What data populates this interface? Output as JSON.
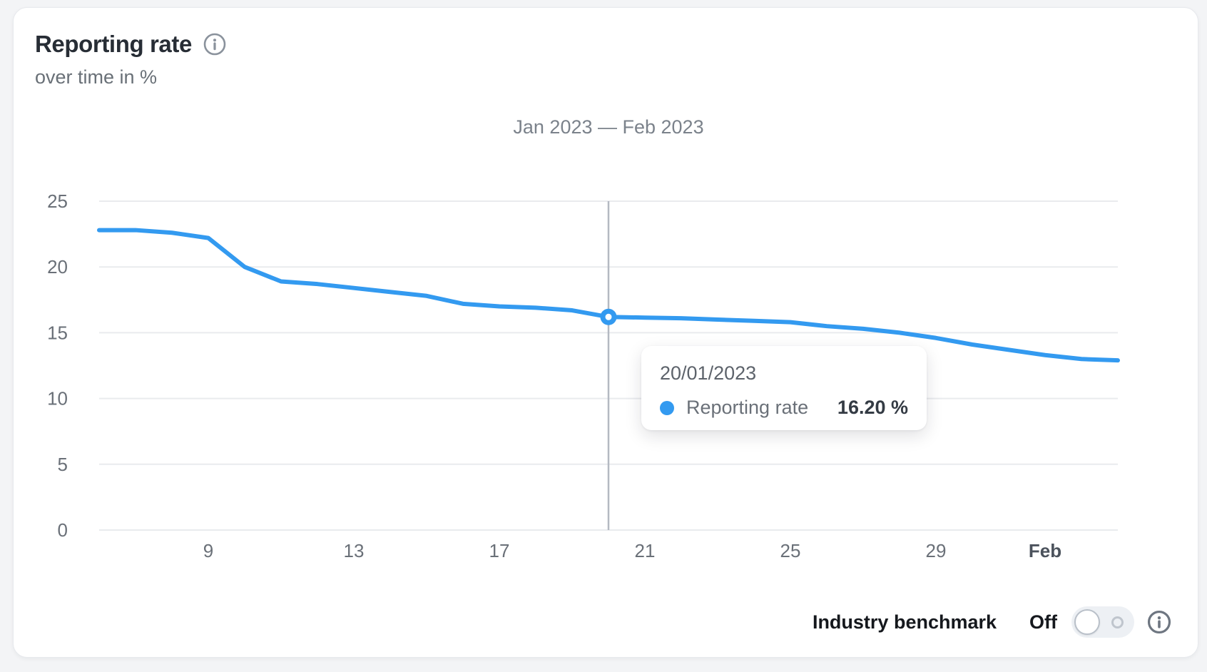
{
  "header": {
    "title": "Reporting rate",
    "subtitle": "over time in %"
  },
  "chart_data": {
    "type": "line",
    "title": "Jan 2023 — Feb 2023",
    "x_unit": "day index within Jan 2023 (32 = Feb 1)",
    "xlim": [
      6,
      34
    ],
    "ylim": [
      0,
      25
    ],
    "grid": "horizontal",
    "y_ticks": [
      0,
      5,
      10,
      15,
      20,
      25
    ],
    "x_ticks": [
      {
        "label": "9",
        "day": 9,
        "bold": false
      },
      {
        "label": "13",
        "day": 13,
        "bold": false
      },
      {
        "label": "17",
        "day": 17,
        "bold": false
      },
      {
        "label": "21",
        "day": 21,
        "bold": false
      },
      {
        "label": "25",
        "day": 25,
        "bold": false
      },
      {
        "label": "29",
        "day": 29,
        "bold": false
      },
      {
        "label": "Feb",
        "day": 32,
        "bold": true
      }
    ],
    "series": [
      {
        "name": "Reporting rate",
        "color": "#339af0",
        "days": [
          6,
          7,
          8,
          9,
          10,
          11,
          12,
          13,
          14,
          15,
          16,
          17,
          18,
          19,
          20,
          21,
          22,
          23,
          24,
          25,
          26,
          27,
          28,
          29,
          30,
          31,
          32,
          33,
          34
        ],
        "values": [
          22.8,
          22.8,
          22.6,
          22.2,
          20.0,
          18.9,
          18.7,
          18.4,
          18.1,
          17.8,
          17.2,
          17.0,
          16.9,
          16.7,
          16.2,
          16.15,
          16.1,
          16.0,
          15.9,
          15.8,
          15.5,
          15.3,
          15.0,
          14.6,
          14.1,
          13.7,
          13.3,
          13.0,
          12.9
        ]
      }
    ]
  },
  "tooltip": {
    "date": "20/01/2023",
    "series_label": "Reporting rate",
    "value": "16.20 %",
    "highlight_day": 20,
    "highlight_value": 16.2
  },
  "benchmark": {
    "label": "Industry benchmark",
    "state": "Off",
    "toggle_state": "off"
  },
  "colors": {
    "accent_blue": "#339af0",
    "hover_line": "#b4b9c2",
    "grid_line": "#e9ebee",
    "card_bg": "#ffffff",
    "page_bg": "#f3f4f6",
    "title_text": "#272d35",
    "muted_text": "#6a7078"
  }
}
